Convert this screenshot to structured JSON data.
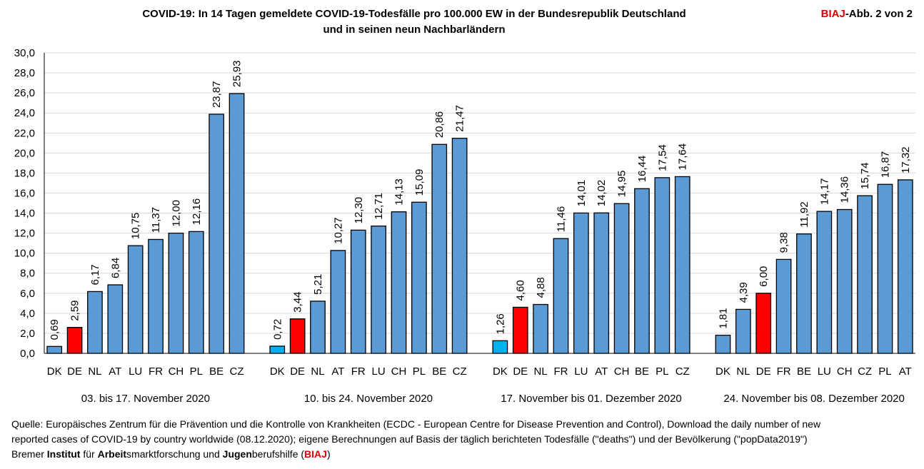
{
  "header": {
    "title_line1": "COVID-19:  In 14 Tagen gemeldete COVID-19-Todesfälle pro 100.000 EW in der Bundesrepublik Deutschland",
    "title_line2": "und in seinen neun Nachbarländern",
    "badge_brand": "BIAJ",
    "badge_rest": "-Abb. 2 von 2"
  },
  "colors": {
    "default_bar": "#5b9bd5",
    "germany_bar": "#ff0000",
    "denmark_bar": "#00b0f0",
    "bar_outline": "#000000",
    "brand_red": "#e00000"
  },
  "chart_data": {
    "type": "bar",
    "title": "COVID-19: In 14 Tagen gemeldete COVID-19-Todesfälle pro 100.000 EW in der Bundesrepublik Deutschland und in seinen neun Nachbarländern",
    "ylim": [
      0,
      30
    ],
    "ytick_step": 2,
    "ytick_labels": [
      "0,0",
      "2,0",
      "4,0",
      "6,0",
      "8,0",
      "10,0",
      "12,0",
      "14,0",
      "16,0",
      "18,0",
      "20,0",
      "22,0",
      "24,0",
      "26,0",
      "28,0",
      "30,0"
    ],
    "grid": true,
    "groups": [
      {
        "period": "03. bis 17. November 2020",
        "categories": [
          "DK",
          "DE",
          "NL",
          "AT",
          "LU",
          "FR",
          "CH",
          "PL",
          "BE",
          "CZ"
        ],
        "values": [
          0.69,
          2.59,
          6.17,
          6.84,
          10.75,
          11.37,
          12.0,
          12.16,
          23.87,
          25.93
        ],
        "labels": [
          "0,69",
          "2,59",
          "6,17",
          "6,84",
          "10,75",
          "11,37",
          "12,00",
          "12,16",
          "23,87",
          "25,93"
        ],
        "highlight": {
          "DE": "germany",
          "DK": "default"
        }
      },
      {
        "period": "10. bis 24. November 2020",
        "categories": [
          "DK",
          "DE",
          "NL",
          "AT",
          "FR",
          "LU",
          "CH",
          "PL",
          "BE",
          "CZ"
        ],
        "values": [
          0.72,
          3.44,
          5.21,
          10.27,
          12.3,
          12.71,
          14.13,
          15.09,
          20.86,
          21.47
        ],
        "labels": [
          "0,72",
          "3,44",
          "5,21",
          "10,27",
          "12,30",
          "12,71",
          "14,13",
          "15,09",
          "20,86",
          "21,47"
        ],
        "highlight": {
          "DE": "germany",
          "DK": "denmark"
        }
      },
      {
        "period": "17. November bis 01. Dezember 2020",
        "categories": [
          "DK",
          "DE",
          "NL",
          "FR",
          "LU",
          "AT",
          "CH",
          "BE",
          "PL",
          "CZ"
        ],
        "values": [
          1.26,
          4.6,
          4.88,
          11.46,
          14.01,
          14.02,
          14.95,
          16.44,
          17.54,
          17.64
        ],
        "labels": [
          "1,26",
          "4,60",
          "4,88",
          "11,46",
          "14,01",
          "14,02",
          "14,95",
          "16,44",
          "17,54",
          "17,64"
        ],
        "highlight": {
          "DE": "germany",
          "DK": "denmark"
        }
      },
      {
        "period": "24. November bis 08. Dezember 2020",
        "categories": [
          "DK",
          "NL",
          "DE",
          "FR",
          "BE",
          "LU",
          "CH",
          "CZ",
          "PL",
          "AT"
        ],
        "values": [
          1.81,
          4.39,
          6.0,
          9.38,
          11.92,
          14.17,
          14.36,
          15.74,
          16.87,
          17.32
        ],
        "labels": [
          "1,81",
          "4,39",
          "6,00",
          "9,38",
          "11,92",
          "14,17",
          "14,36",
          "15,74",
          "16,87",
          "17,32"
        ],
        "highlight": {
          "DE": "germany",
          "DK": "default"
        }
      }
    ]
  },
  "source": {
    "line1": "Quelle: Europäisches Zentrum für die Prävention und die Kontrolle von Krankheiten (ECDC - European Centre for Disease Prevention and Control), Download the daily number of new",
    "line2": "reported cases of COVID-19 by country worldwide (08.12.2020); eigene Berechnungen auf Basis der täglich berichteten Todesfälle (\"deaths\") und der Bevölkerung (\"popData2019\")",
    "org_p1": "Bremer ",
    "org_p2": "Institut",
    "org_p3": " für ",
    "org_p4": "Arbeit",
    "org_p5": "smarktforschung und ",
    "org_p6": "Jugen",
    "org_p7": "berufshilfe (",
    "org_p8": "BIAJ",
    "org_p9": ")"
  }
}
